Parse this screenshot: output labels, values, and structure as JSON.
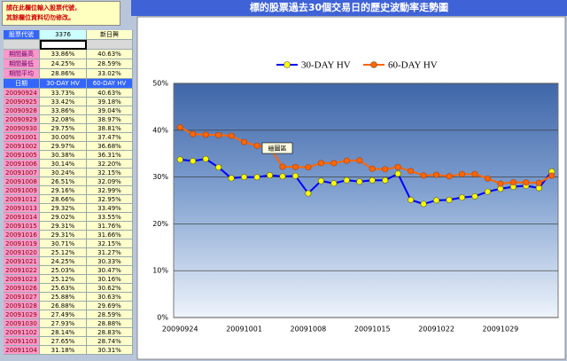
{
  "note": [
    "請在此欄位輸入股票代號，",
    "其餘欄位資料切勿修改。"
  ],
  "sheet": {
    "stock_row": [
      "股票代號",
      "3376",
      "新日興"
    ],
    "stats": [
      [
        "期間最高",
        "33.86%",
        "40.63%"
      ],
      [
        "期間最低",
        "24.25%",
        "28.59%"
      ],
      [
        "期間平均",
        "28.86%",
        "33.02%"
      ]
    ],
    "header": [
      "日期",
      "30-DAY HV",
      "60-DAY HV"
    ],
    "rows": [
      [
        "20090924",
        "33.73%",
        "40.63%"
      ],
      [
        "20090925",
        "33.42%",
        "39.18%"
      ],
      [
        "20090928",
        "33.86%",
        "39.04%"
      ],
      [
        "20090929",
        "32.08%",
        "38.97%"
      ],
      [
        "20090930",
        "29.75%",
        "38.81%"
      ],
      [
        "20091001",
        "30.00%",
        "37.47%"
      ],
      [
        "20091002",
        "29.97%",
        "36.68%"
      ],
      [
        "20091005",
        "30.38%",
        "36.31%"
      ],
      [
        "20091006",
        "30.14%",
        "32.20%"
      ],
      [
        "20091007",
        "30.24%",
        "32.15%"
      ],
      [
        "20091008",
        "26.51%",
        "32.09%"
      ],
      [
        "20091009",
        "29.16%",
        "32.99%"
      ],
      [
        "20091012",
        "28.66%",
        "32.95%"
      ],
      [
        "20091013",
        "29.32%",
        "33.49%"
      ],
      [
        "20091014",
        "29.02%",
        "33.55%"
      ],
      [
        "20091015",
        "29.31%",
        "31.76%"
      ],
      [
        "20091016",
        "29.31%",
        "31.66%"
      ],
      [
        "20091019",
        "30.71%",
        "32.15%"
      ],
      [
        "20091020",
        "25.12%",
        "31.27%"
      ],
      [
        "20091021",
        "24.25%",
        "30.33%"
      ],
      [
        "20091022",
        "25.03%",
        "30.47%"
      ],
      [
        "20091023",
        "25.12%",
        "30.16%"
      ],
      [
        "20091026",
        "25.63%",
        "30.62%"
      ],
      [
        "20091027",
        "25.88%",
        "30.63%"
      ],
      [
        "20091028",
        "26.88%",
        "29.69%"
      ],
      [
        "20091029",
        "27.49%",
        "28.59%"
      ],
      [
        "20091030",
        "27.93%",
        "28.88%"
      ],
      [
        "20091102",
        "28.14%",
        "28.83%"
      ],
      [
        "20091103",
        "27.65%",
        "28.74%"
      ],
      [
        "20091104",
        "31.18%",
        "30.31%"
      ]
    ]
  },
  "chart_data": {
    "type": "line",
    "title": "標的股票過去30個交易日的歷史波動率走勢圖",
    "categories": [
      "20090924",
      null,
      null,
      null,
      null,
      "20091001",
      null,
      null,
      null,
      null,
      "20091008",
      null,
      null,
      null,
      null,
      "20091015",
      null,
      null,
      null,
      null,
      "20091022",
      null,
      null,
      null,
      null,
      "20091029",
      null,
      null,
      null,
      null
    ],
    "series": [
      {
        "name": "30-DAY HV",
        "color": "#0000ff",
        "marker_color": "#ffff00",
        "values": [
          33.73,
          33.42,
          33.86,
          32.08,
          29.75,
          30.0,
          29.97,
          30.38,
          30.14,
          30.24,
          26.51,
          29.16,
          28.66,
          29.32,
          29.02,
          29.31,
          29.31,
          30.71,
          25.12,
          24.25,
          25.03,
          25.12,
          25.63,
          25.88,
          26.88,
          27.49,
          27.93,
          28.14,
          27.65,
          31.18
        ]
      },
      {
        "name": "60-DAY HV",
        "color": "#ff6600",
        "marker_color": "#ff6600",
        "values": [
          40.63,
          39.18,
          39.04,
          38.97,
          38.81,
          37.47,
          36.68,
          36.31,
          32.2,
          32.15,
          32.09,
          32.99,
          32.95,
          33.49,
          33.55,
          31.76,
          31.66,
          32.15,
          31.27,
          30.33,
          30.47,
          30.16,
          30.62,
          30.63,
          29.69,
          28.59,
          28.88,
          28.83,
          28.74,
          30.31
        ]
      }
    ],
    "ylim": [
      0,
      50
    ],
    "yticks": [
      {
        "value": 0,
        "label": "0%"
      },
      {
        "value": 10,
        "label": "10%"
      },
      {
        "value": 20,
        "label": "20%"
      },
      {
        "value": 30,
        "label": "30%"
      },
      {
        "value": 40,
        "label": "40%"
      },
      {
        "value": 50,
        "label": "50%"
      }
    ],
    "grid": true,
    "legend": "top",
    "tooltip": "繪圖區"
  }
}
